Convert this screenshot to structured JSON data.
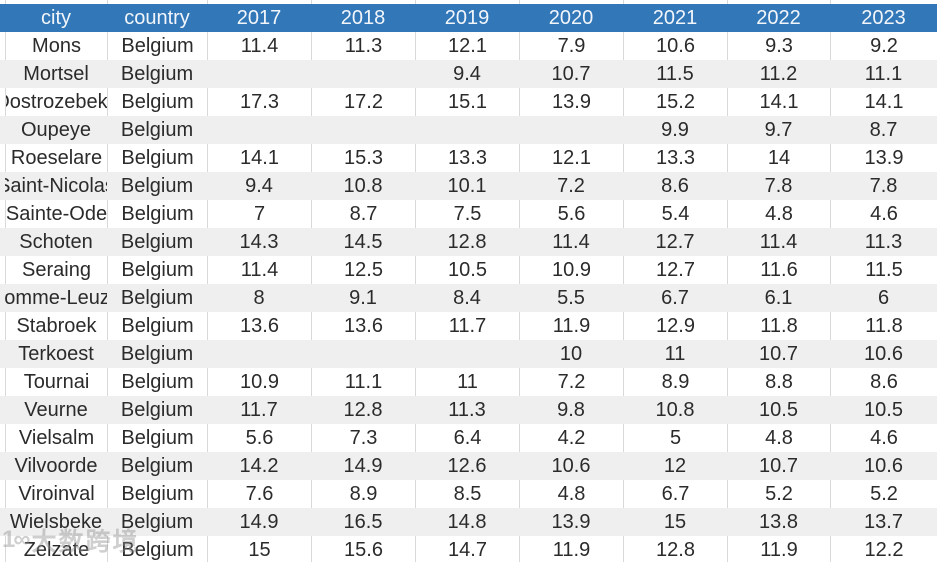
{
  "table": {
    "columns": [
      "city",
      "country",
      "2017",
      "2018",
      "2019",
      "2020",
      "2021",
      "2022",
      "2023"
    ],
    "rows": [
      {
        "city": "Mons",
        "country": "Belgium",
        "values": [
          "11.4",
          "11.3",
          "12.1",
          "7.9",
          "10.6",
          "9.3",
          "9.2"
        ]
      },
      {
        "city": "Mortsel",
        "country": "Belgium",
        "values": [
          "",
          "",
          "9.4",
          "10.7",
          "11.5",
          "11.2",
          "11.1"
        ]
      },
      {
        "city": "Oostrozebeke",
        "country": "Belgium",
        "values": [
          "17.3",
          "17.2",
          "15.1",
          "13.9",
          "15.2",
          "14.1",
          "14.1"
        ]
      },
      {
        "city": "Oupeye",
        "country": "Belgium",
        "values": [
          "",
          "",
          "",
          "",
          "9.9",
          "9.7",
          "8.7"
        ]
      },
      {
        "city": "Roeselare",
        "country": "Belgium",
        "values": [
          "14.1",
          "15.3",
          "13.3",
          "12.1",
          "13.3",
          "14",
          "13.9"
        ]
      },
      {
        "city": "Saint-Nicolas",
        "country": "Belgium",
        "values": [
          "9.4",
          "10.8",
          "10.1",
          "7.2",
          "8.6",
          "7.8",
          "7.8"
        ]
      },
      {
        "city": "Sainte-Ode",
        "country": "Belgium",
        "values": [
          "7",
          "8.7",
          "7.5",
          "5.6",
          "5.4",
          "4.8",
          "4.6"
        ]
      },
      {
        "city": "Schoten",
        "country": "Belgium",
        "values": [
          "14.3",
          "14.5",
          "12.8",
          "11.4",
          "12.7",
          "11.4",
          "11.3"
        ]
      },
      {
        "city": "Seraing",
        "country": "Belgium",
        "values": [
          "11.4",
          "12.5",
          "10.5",
          "10.9",
          "12.7",
          "11.6",
          "11.5"
        ]
      },
      {
        "city": "Somme-Leuze",
        "country": "Belgium",
        "values": [
          "8",
          "9.1",
          "8.4",
          "5.5",
          "6.7",
          "6.1",
          "6"
        ]
      },
      {
        "city": "Stabroek",
        "country": "Belgium",
        "values": [
          "13.6",
          "13.6",
          "11.7",
          "11.9",
          "12.9",
          "11.8",
          "11.8"
        ]
      },
      {
        "city": "Terkoest",
        "country": "Belgium",
        "values": [
          "",
          "",
          "",
          "10",
          "11",
          "10.7",
          "10.6"
        ]
      },
      {
        "city": "Tournai",
        "country": "Belgium",
        "values": [
          "10.9",
          "11.1",
          "11",
          "7.2",
          "8.9",
          "8.8",
          "8.6"
        ]
      },
      {
        "city": "Veurne",
        "country": "Belgium",
        "values": [
          "11.7",
          "12.8",
          "11.3",
          "9.8",
          "10.8",
          "10.5",
          "10.5"
        ]
      },
      {
        "city": "Vielsalm",
        "country": "Belgium",
        "values": [
          "5.6",
          "7.3",
          "6.4",
          "4.2",
          "5",
          "4.8",
          "4.6"
        ]
      },
      {
        "city": "Vilvoorde",
        "country": "Belgium",
        "values": [
          "14.2",
          "14.9",
          "12.6",
          "10.6",
          "12",
          "10.7",
          "10.6"
        ]
      },
      {
        "city": "Viroinval",
        "country": "Belgium",
        "values": [
          "7.6",
          "8.9",
          "8.5",
          "4.8",
          "6.7",
          "5.2",
          "5.2"
        ]
      },
      {
        "city": "Wielsbeke",
        "country": "Belgium",
        "values": [
          "14.9",
          "16.5",
          "14.8",
          "13.9",
          "15",
          "13.8",
          "13.7"
        ]
      },
      {
        "city": "Zelzate",
        "country": "Belgium",
        "values": [
          "15",
          "15.6",
          "14.7",
          "11.9",
          "12.8",
          "11.9",
          "12.2"
        ]
      }
    ]
  },
  "watermark": {
    "logo": "1∞",
    "text": "大数跨境"
  },
  "colors": {
    "header_bg": "#3277b8",
    "header_text": "#f2f6fb",
    "row_alt": "#efefef",
    "border": "#d9d9d9",
    "cell_text": "#2b2b2b"
  }
}
